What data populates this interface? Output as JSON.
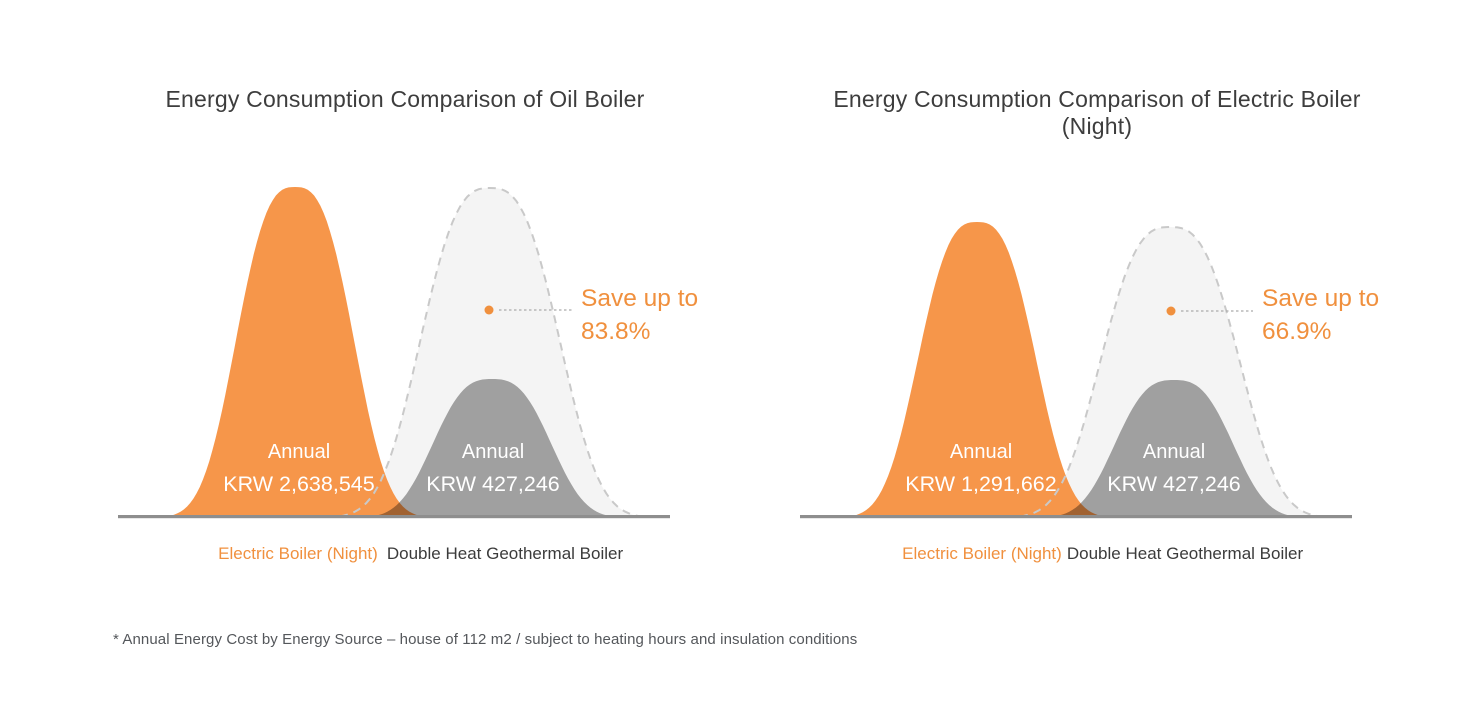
{
  "palette": {
    "orange_fill": "#F6964A",
    "orange_text": "#F0903E",
    "gray_fill": "#A7A7A7",
    "light_fill": "#F4F4F4",
    "dash_stroke": "#C9C9C9",
    "axis": "#8E8E8E",
    "connector": "#ABABAB",
    "title_text": "#3D3D3D",
    "dark_label": "#3B3B3B",
    "footnote_text": "#54575B",
    "label_white": "#FFFFFF"
  },
  "charts": [
    {
      "title": "Energy Consumption Comparison of Oil Boiler",
      "save_label": "Save up to",
      "save_value": "83.8%",
      "series": [
        {
          "name": "Electric Boiler (Night)",
          "annual_label": "Annual",
          "annual_cost": "KRW 2,638,545"
        },
        {
          "name": "Double Heat Geothermal Boiler",
          "annual_label": "Annual",
          "annual_cost": "KRW 427,246"
        }
      ]
    },
    {
      "title": "Energy Consumption Comparison of Electric Boiler (Night)",
      "save_label": "Save up to",
      "save_value": "66.9%",
      "series": [
        {
          "name": "Electric Boiler (Night)",
          "annual_label": "Annual",
          "annual_cost": "KRW 1,291,662"
        },
        {
          "name": "Double Heat Geothermal Boiler",
          "annual_label": "Annual",
          "annual_cost": "KRW 427,246"
        }
      ]
    }
  ],
  "footnote": "* Annual Energy Cost by Energy Source – house of 112 m2 / subject to heating hours and insulation conditions",
  "chart_data": [
    {
      "type": "area",
      "title": "Energy Consumption Comparison of Oil Boiler",
      "categories": [
        "Electric Boiler (Night)",
        "Double Heat Geothermal Boiler"
      ],
      "values": [
        2638545,
        427246
      ],
      "unit": "KRW/year",
      "annotation": "Save up to 83.8%",
      "savings_percent": 83.8,
      "legend_position": "bottom",
      "grid": false
    },
    {
      "type": "area",
      "title": "Energy Consumption Comparison of Electric Boiler (Night)",
      "categories": [
        "Electric Boiler (Night)",
        "Double Heat Geothermal Boiler"
      ],
      "values": [
        1291662,
        427246
      ],
      "unit": "KRW/year",
      "annotation": "Save up to 66.9%",
      "savings_percent": 66.9,
      "legend_position": "bottom",
      "grid": false
    }
  ]
}
